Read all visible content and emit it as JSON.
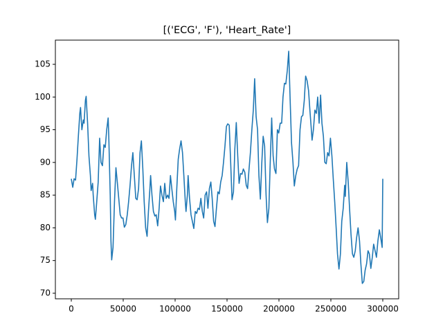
{
  "chart_data": {
    "type": "line",
    "title": "[('ECG', 'F'), 'Heart_Rate']",
    "x": [
      0,
      1400,
      2700,
      4100,
      5500,
      6800,
      8200,
      8900,
      10200,
      11600,
      12300,
      13600,
      14300,
      15700,
      17000,
      18400,
      19100,
      20500,
      21100,
      22500,
      23200,
      24500,
      25900,
      27300,
      28600,
      30000,
      31400,
      32700,
      34100,
      35500,
      36100,
      37500,
      38200,
      38900,
      40200,
      41600,
      43000,
      44300,
      45700,
      47100,
      48400,
      49800,
      51100,
      52500,
      53900,
      55200,
      56600,
      58000,
      59300,
      60700,
      62100,
      63400,
      64800,
      66200,
      67500,
      68900,
      70200,
      71600,
      73000,
      74300,
      75700,
      76400,
      77700,
      79100,
      80500,
      81800,
      83200,
      84600,
      85900,
      87300,
      88700,
      90000,
      91400,
      92800,
      94100,
      95500,
      96800,
      98200,
      99600,
      100300,
      101600,
      103000,
      104300,
      105700,
      107100,
      108400,
      109800,
      110500,
      111800,
      112500,
      113900,
      115300,
      116600,
      118000,
      119400,
      120700,
      122100,
      123400,
      124800,
      126200,
      127500,
      128900,
      130300,
      131600,
      133000,
      134400,
      135700,
      137100,
      138400,
      139800,
      141200,
      142500,
      143900,
      145300,
      146600,
      148000,
      149400,
      150700,
      152100,
      153500,
      154800,
      156200,
      157500,
      158900,
      160300,
      161600,
      163000,
      164400,
      165700,
      167100,
      168500,
      169800,
      171200,
      172500,
      173900,
      175300,
      176600,
      178000,
      179400,
      180700,
      182100,
      183500,
      184800,
      186200,
      187600,
      188900,
      190300,
      191600,
      193000,
      194400,
      195700,
      197100,
      198500,
      199800,
      201200,
      202600,
      203900,
      205300,
      206600,
      208000,
      209400,
      210700,
      212100,
      213500,
      214800,
      216200,
      217600,
      218900,
      220300,
      221700,
      223000,
      224400,
      225700,
      227100,
      228500,
      229800,
      231200,
      231900,
      233200,
      234600,
      236000,
      237300,
      238700,
      240100,
      241400,
      242800,
      244200,
      245500,
      246900,
      248200,
      249600,
      251000,
      252300,
      253700,
      255100,
      256400,
      257800,
      259200,
      260500,
      261900,
      263300,
      263900,
      265300,
      266700,
      268000,
      269400,
      270800,
      272100,
      273500,
      274800,
      276200,
      277600,
      278900,
      280300,
      281700,
      283000,
      284400,
      285800,
      287100,
      288500,
      289900,
      291200,
      292600,
      293900,
      295300,
      296700,
      298000,
      299400,
      300000
    ],
    "series": [
      {
        "color": "#1f77b4",
        "values": [
          87.5,
          86.2,
          87.5,
          87.3,
          90.5,
          94,
          97.5,
          98.4,
          95,
          96.5,
          96,
          99.5,
          100.1,
          96,
          91,
          88,
          85.7,
          86.8,
          85,
          82,
          81.3,
          84,
          87,
          93.7,
          90,
          89.5,
          92.7,
          92.3,
          95,
          96.8,
          94,
          85,
          78,
          75.1,
          77,
          84,
          89.2,
          87,
          84.5,
          82,
          81.5,
          81.5,
          80.1,
          80.5,
          82,
          84,
          86.5,
          89.5,
          91.5,
          88,
          84.5,
          84.3,
          86,
          91.5,
          93.3,
          89,
          84,
          80,
          78.7,
          82.5,
          86,
          88,
          85,
          82.5,
          81.8,
          82,
          80.3,
          83,
          86.4,
          85,
          84,
          86.8,
          84.5,
          85,
          84.5,
          88,
          86,
          84,
          82.5,
          81.2,
          86,
          90.5,
          92,
          93.3,
          91.5,
          88,
          84,
          82.5,
          85,
          88,
          84.5,
          82,
          81,
          79.9,
          82.5,
          82.2,
          83,
          82.8,
          84.5,
          82.5,
          81.5,
          85,
          85.5,
          83,
          86,
          87,
          84.5,
          81,
          80.2,
          83,
          85.5,
          85.2,
          87,
          88,
          90,
          92.5,
          95.5,
          95.9,
          95.7,
          90,
          84.3,
          85.5,
          92,
          96.1,
          91,
          86.8,
          88.3,
          88.2,
          89,
          88.5,
          86.5,
          86,
          89,
          91.5,
          95,
          98,
          102.8,
          97,
          95,
          88,
          84.4,
          90,
          94,
          92.5,
          85,
          80.8,
          83,
          90,
          96.8,
          91,
          89,
          88.3,
          95,
          94.5,
          96,
          96,
          100,
          102.1,
          102,
          104,
          107,
          100,
          93,
          90,
          86.4,
          88,
          89,
          89.5,
          95,
          97,
          97.2,
          99.5,
          103.2,
          102.5,
          101,
          98,
          95,
          93.4,
          95,
          98,
          97.5,
          100,
          96,
          100.3,
          96,
          94,
          90,
          89.8,
          91.5,
          91,
          93.7,
          91,
          87.5,
          84,
          80,
          76,
          73.7,
          76,
          81,
          83,
          86.5,
          84.8,
          90,
          87,
          83,
          79,
          76,
          75.5,
          76.5,
          78.5,
          80,
          78,
          74.5,
          71.5,
          71.8,
          73.5,
          74.5,
          76.5,
          76,
          73.8,
          75.5,
          77.5,
          76.5,
          75.5,
          78,
          79.7,
          78.5,
          77,
          87.5
        ]
      }
    ],
    "xlim": [
      -15333,
      315333
    ],
    "xticks": [
      0,
      50000,
      100000,
      150000,
      200000,
      250000,
      300000
    ],
    "ylim": [
      69.15,
      108.7
    ],
    "yticks": [
      70,
      75,
      80,
      85,
      90,
      95,
      100,
      105
    ]
  }
}
